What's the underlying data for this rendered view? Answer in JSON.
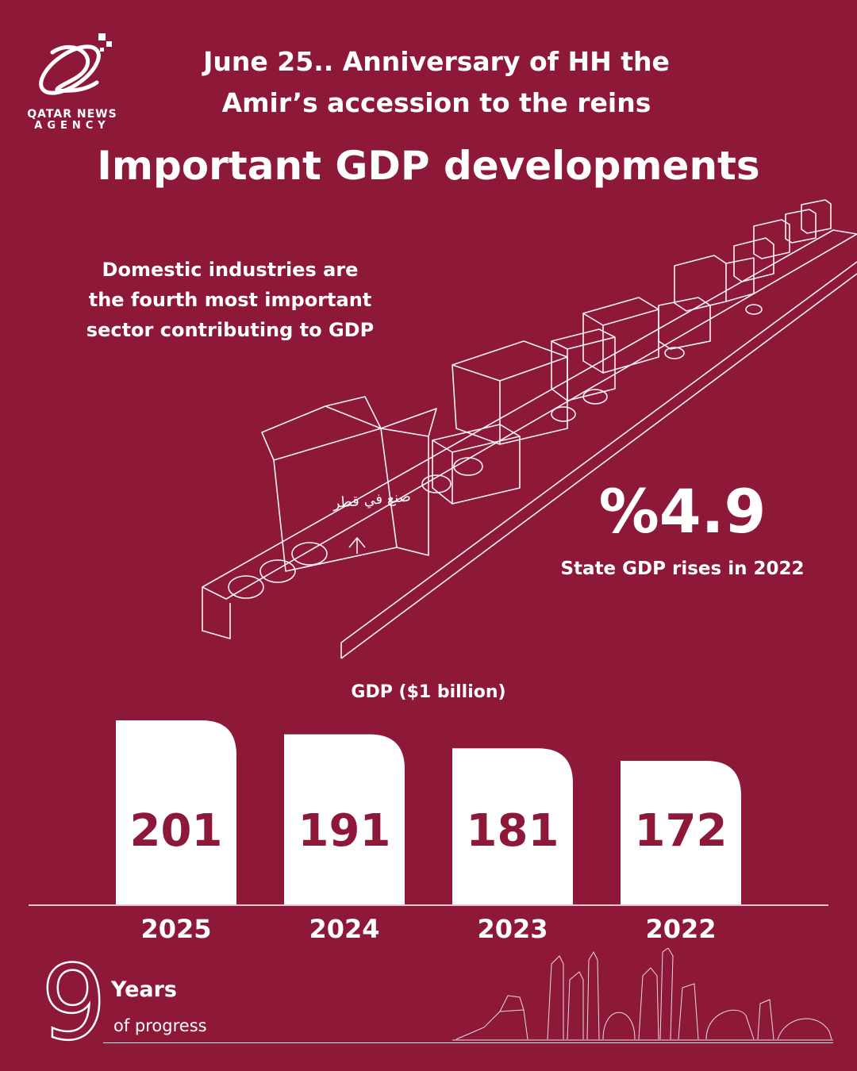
{
  "brand": {
    "agency_line1": "QATAR NEWS",
    "agency_line2": "AGENCY",
    "colors": {
      "background": "#8e1838",
      "bar": "#ffffff",
      "bar_text": "#8e1838"
    }
  },
  "header": {
    "line1": "June 25.. Anniversary of HH the",
    "line2": "Amir’s accession to the reins",
    "title": "Important GDP developments"
  },
  "note": {
    "line1": "Domestic industries are",
    "line2": "the fourth most important",
    "line3": "sector contributing to GDP"
  },
  "highlight": {
    "value": "%4.9",
    "label": "State GDP rises in 2022"
  },
  "illustration": {
    "box_text": "صنع في قطر"
  },
  "chart_data": {
    "type": "bar",
    "title": "GDP ($1 billion)",
    "categories": [
      "2025",
      "2024",
      "2023",
      "2022"
    ],
    "values": [
      201,
      191,
      181,
      172
    ],
    "ylim": [
      0,
      201
    ],
    "grid": false,
    "legend": "none"
  },
  "footer": {
    "years_number": "9",
    "years_label": "Years",
    "years_sub": "of progress"
  }
}
